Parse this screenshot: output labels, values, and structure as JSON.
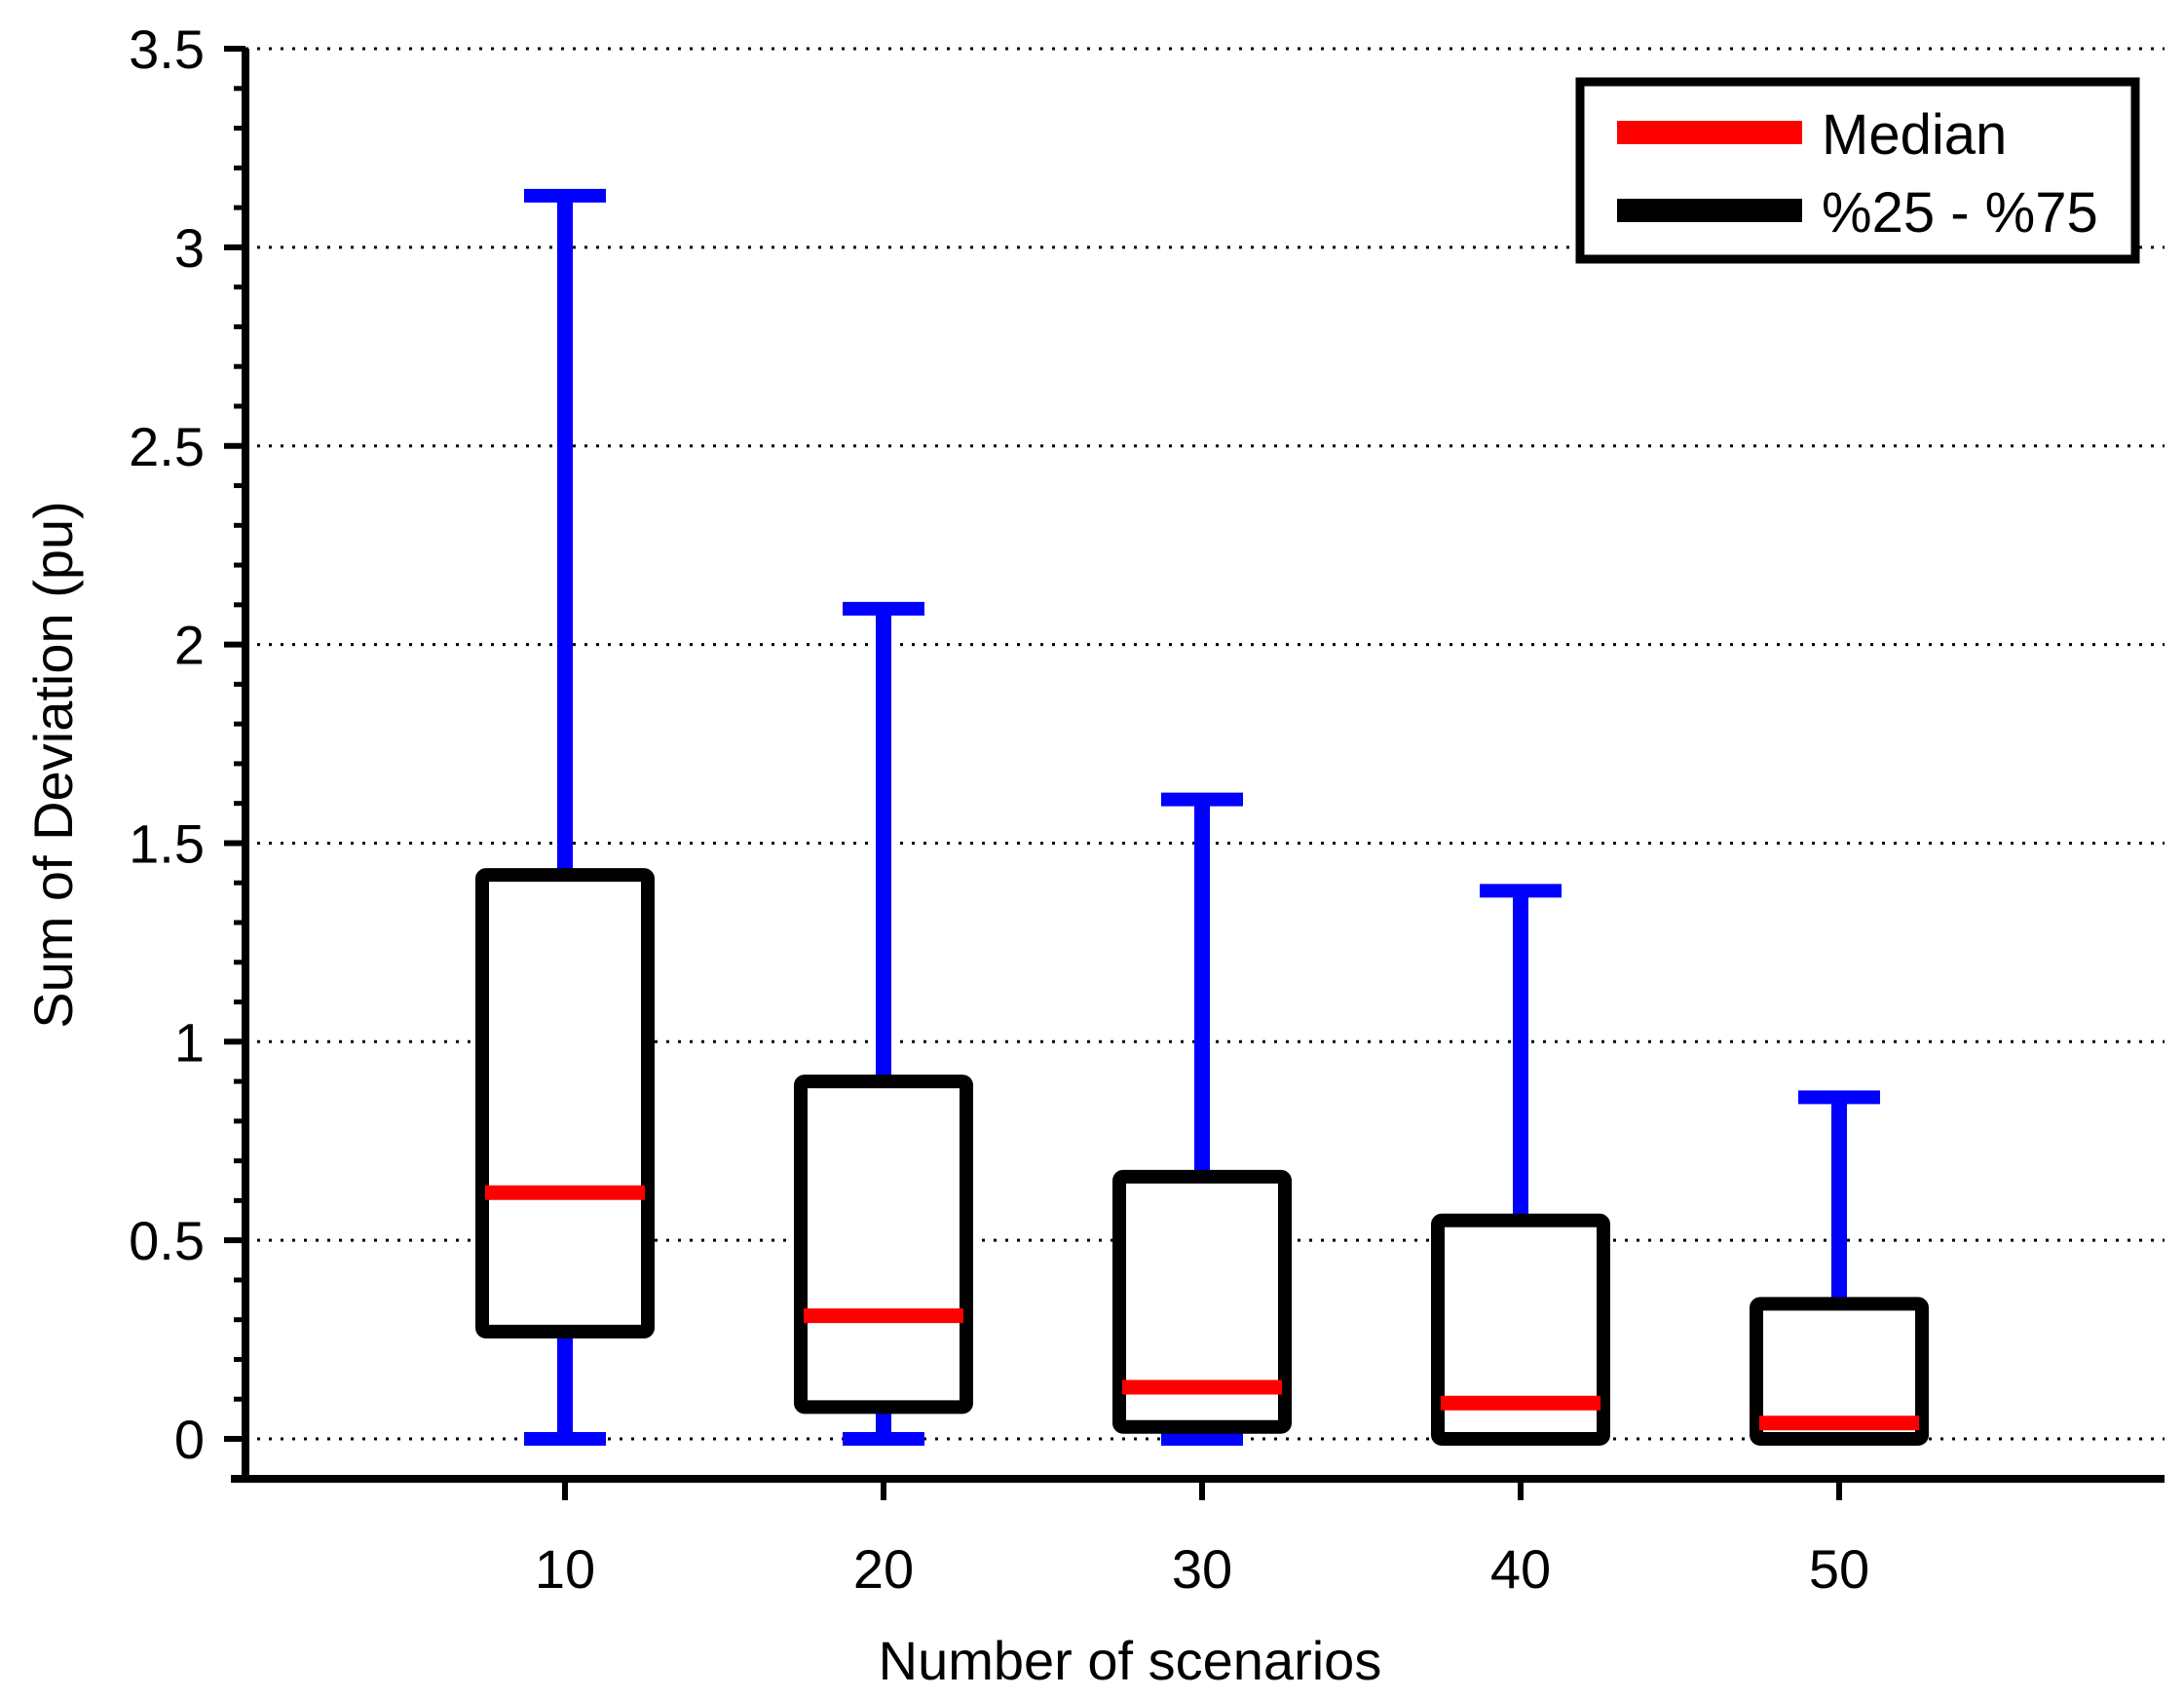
{
  "chart_data": {
    "type": "boxplot",
    "title": "",
    "xlabel": "Number of scenarios",
    "ylabel": "Sum of Deviation (pu)",
    "categories": [
      "10",
      "20",
      "30",
      "40",
      "50"
    ],
    "ylim": [
      -0.1,
      3.5
    ],
    "yticks": [
      0,
      0.5,
      1,
      1.5,
      2,
      2.5,
      3,
      3.5
    ],
    "ytick_labels": [
      "0",
      "0.5",
      "1",
      "1.5",
      "2",
      "2.5",
      "3",
      "3.5"
    ],
    "grid": "horizontal-dotted",
    "boxes": [
      {
        "category": "10",
        "whisker_low": 0.0,
        "q1": 0.27,
        "median": 0.62,
        "q3": 1.42,
        "whisker_high": 3.13
      },
      {
        "category": "20",
        "whisker_low": 0.0,
        "q1": 0.08,
        "median": 0.31,
        "q3": 0.9,
        "whisker_high": 2.09
      },
      {
        "category": "30",
        "whisker_low": 0.0,
        "q1": 0.03,
        "median": 0.13,
        "q3": 0.66,
        "whisker_high": 1.61
      },
      {
        "category": "40",
        "whisker_low": 0.0,
        "q1": 0.0,
        "median": 0.09,
        "q3": 0.55,
        "whisker_high": 1.38
      },
      {
        "category": "50",
        "whisker_low": 0.0,
        "q1": 0.0,
        "median": 0.04,
        "q3": 0.34,
        "whisker_high": 0.86
      }
    ],
    "legend": {
      "position": "top-right",
      "entries": [
        {
          "label": "Median",
          "color": "#ff0000"
        },
        {
          "label": "%25 - %75",
          "color": "#000000"
        }
      ]
    },
    "colors": {
      "whisker": "#0000ff",
      "median": "#ff0000",
      "box": "#000000",
      "grid": "#000000"
    }
  }
}
